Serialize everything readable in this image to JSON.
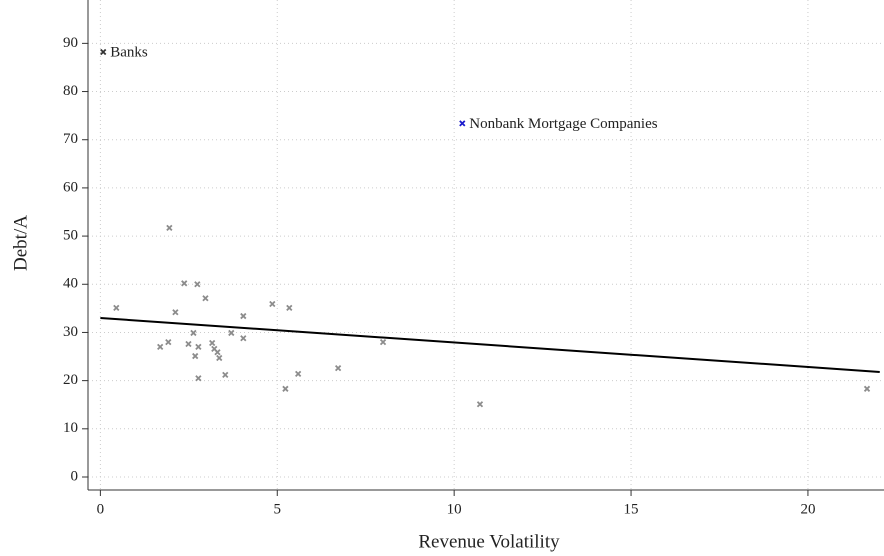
{
  "chart_data": {
    "type": "scatter",
    "xlabel": "Revenue Volatility",
    "ylabel": "Debt/A",
    "xlim": [
      -0.35,
      22.15
    ],
    "ylim": [
      -2.7,
      99
    ],
    "xticks": [
      0,
      5,
      10,
      15,
      20
    ],
    "yticks": [
      0,
      10,
      20,
      30,
      40,
      50,
      60,
      70,
      80,
      90
    ],
    "grid": true,
    "series": [
      {
        "name": "Banks",
        "color": "#333333",
        "x": [
          0.08
        ],
        "values": [
          88.2
        ]
      },
      {
        "name": "Nonbank Mortgage Companies",
        "color": "#1a1acc",
        "x": [
          10.23
        ],
        "values": [
          73.4
        ]
      },
      {
        "color": "#8c8c8c",
        "x": [
          0.45,
          1.69,
          1.92,
          1.95,
          2.12,
          2.37,
          2.49,
          2.63,
          2.68,
          2.74,
          2.77,
          2.77,
          2.97,
          3.16,
          3.22,
          3.31,
          3.36,
          3.53,
          3.7,
          4.04,
          4.04,
          4.86,
          5.23,
          5.34,
          5.59,
          6.72,
          7.99,
          10.73,
          21.67
        ],
        "values": [
          35.1,
          27.0,
          28.0,
          51.7,
          34.2,
          40.2,
          27.6,
          29.9,
          25.1,
          40.0,
          27.0,
          20.5,
          37.1,
          27.8,
          26.6,
          25.9,
          24.7,
          21.2,
          29.9,
          33.4,
          28.8,
          35.9,
          18.3,
          35.1,
          21.4,
          22.6,
          28.0,
          15.1,
          18.3
        ]
      },
      {
        "type": "line",
        "color": "#000000",
        "x": [
          0,
          22.03
        ],
        "values": [
          33.0,
          21.8
        ]
      }
    ]
  }
}
